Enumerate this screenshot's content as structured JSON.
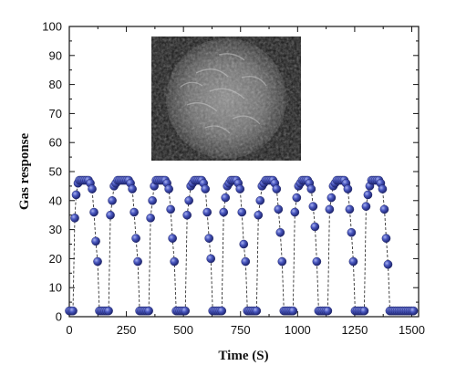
{
  "chart_data": {
    "type": "scatter",
    "xlabel": "Time (S)",
    "ylabel": "Gas response",
    "xlim": [
      0,
      1530
    ],
    "ylim": [
      0,
      100
    ],
    "x_ticks": [
      0,
      250,
      500,
      750,
      1000,
      1250,
      1500
    ],
    "y_ticks": [
      0,
      10,
      20,
      30,
      40,
      50,
      60,
      70,
      80,
      90,
      100
    ],
    "grid": false,
    "marker_color": "#3a4ab0",
    "line_style": "dashed",
    "inset_image": "sem-micrograph-flower-nanostructure",
    "series": [
      {
        "x": [
          0,
          8,
          16,
          24,
          30,
          38,
          44,
          52,
          60,
          68,
          76,
          84,
          92,
          100,
          108,
          116,
          124,
          132,
          140,
          148,
          156,
          164,
          172,
          180,
          188,
          196,
          204,
          212
        ],
        "y": [
          2,
          2,
          2,
          34,
          42,
          46,
          47,
          47,
          47,
          47,
          47,
          47,
          46,
          44,
          36,
          26,
          19,
          2,
          2,
          2,
          2,
          2,
          2,
          35,
          40,
          45,
          46,
          47
        ]
      },
      {
        "x": [
          220,
          228,
          236,
          244,
          252,
          260,
          268,
          276,
          284,
          292,
          300,
          308,
          316,
          324,
          332,
          340,
          348,
          356,
          364,
          372,
          380,
          388,
          396,
          404,
          412,
          420,
          428
        ],
        "y": [
          47,
          47,
          47,
          47,
          47,
          47,
          46,
          44,
          36,
          27,
          19,
          2,
          2,
          2,
          2,
          2,
          2,
          34,
          40,
          45,
          47,
          47,
          47,
          47,
          47,
          47,
          46
        ]
      },
      {
        "x": [
          436,
          444,
          452,
          460,
          468,
          476,
          484,
          492,
          500,
          508,
          516,
          524,
          532,
          540,
          548,
          556,
          564,
          572,
          580,
          588,
          596,
          604,
          612,
          620
        ],
        "y": [
          44,
          37,
          27,
          19,
          2,
          2,
          2,
          2,
          2,
          2,
          35,
          40,
          45,
          46,
          47,
          47,
          47,
          47,
          47,
          46,
          44,
          36,
          27,
          20
        ]
      },
      {
        "x": [
          628,
          636,
          644,
          652,
          660,
          668,
          676,
          684,
          692,
          700,
          708,
          716,
          724,
          732,
          740,
          748,
          756,
          764,
          772,
          780,
          788,
          796,
          804,
          812
        ],
        "y": [
          2,
          2,
          2,
          2,
          2,
          2,
          36,
          41,
          45,
          46,
          47,
          47,
          47,
          47,
          46,
          44,
          36,
          25,
          19,
          2,
          2,
          2,
          2,
          2
        ]
      },
      {
        "x": [
          820,
          828,
          836,
          844,
          852,
          860,
          868,
          876,
          884,
          892,
          900,
          908,
          916,
          924,
          932,
          940,
          948,
          956,
          964,
          972,
          980,
          988,
          996,
          1004
        ],
        "y": [
          2,
          35,
          40,
          45,
          46,
          47,
          47,
          47,
          47,
          47,
          46,
          44,
          37,
          29,
          19,
          2,
          2,
          2,
          2,
          2,
          2,
          36,
          41,
          45
        ]
      },
      {
        "x": [
          1012,
          1020,
          1028,
          1036,
          1044,
          1052,
          1060,
          1068,
          1076,
          1084,
          1092,
          1100,
          1108,
          1116,
          1124,
          1132,
          1140,
          1148,
          1156,
          1164,
          1172,
          1180,
          1188,
          1196
        ],
        "y": [
          46,
          47,
          47,
          47,
          47,
          46,
          44,
          38,
          31,
          19,
          2,
          2,
          2,
          2,
          2,
          2,
          37,
          41,
          45,
          46,
          47,
          47,
          47,
          47
        ]
      },
      {
        "x": [
          1204,
          1212,
          1220,
          1228,
          1236,
          1244,
          1252,
          1260,
          1268,
          1276,
          1284,
          1292,
          1300,
          1308,
          1316,
          1324,
          1332,
          1340,
          1348,
          1356,
          1364,
          1372
        ],
        "y": [
          47,
          46,
          44,
          37,
          29,
          19,
          2,
          2,
          2,
          2,
          2,
          2,
          38,
          42,
          45,
          47,
          47,
          47,
          47,
          47,
          46,
          44
        ]
      },
      {
        "x": [
          1380,
          1388,
          1396,
          1404,
          1412,
          1420,
          1428,
          1436,
          1444,
          1452,
          1460,
          1468,
          1476,
          1484,
          1492,
          1500,
          1508
        ],
        "y": [
          37,
          27,
          18,
          2,
          2,
          2,
          2,
          2,
          2,
          2,
          2,
          2,
          2,
          2,
          2,
          2,
          2
        ]
      }
    ]
  }
}
